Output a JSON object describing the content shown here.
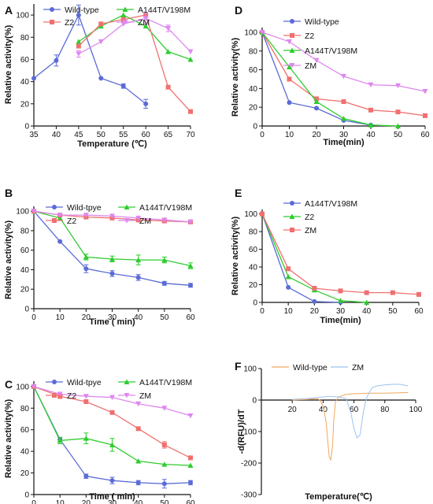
{
  "chart_data": [
    {
      "panel": "A",
      "type": "line",
      "xlabel": "Temperature (℃)",
      "ylabel": "Relative activity(%)",
      "xlim": [
        35,
        70
      ],
      "ylim": [
        0,
        110
      ],
      "xticks": [
        35,
        40,
        45,
        50,
        55,
        60,
        65,
        70
      ],
      "yticks": [
        0,
        20,
        40,
        60,
        80,
        100
      ],
      "legend_position": "top",
      "series": [
        {
          "name": "Wild-type",
          "color": "#5b6bd6",
          "marker": "circle",
          "x": [
            35,
            40,
            45,
            50,
            55,
            60
          ],
          "y": [
            43,
            59,
            100,
            43,
            36,
            20
          ],
          "err": [
            0,
            5,
            9,
            0,
            2,
            4
          ]
        },
        {
          "name": "A144T/V198M",
          "color": "#2ecc2e",
          "marker": "triangle",
          "x": [
            45,
            50,
            55,
            60,
            65,
            70
          ],
          "y": [
            76,
            90,
            100,
            90,
            67,
            60
          ],
          "err": [
            0,
            0,
            0,
            0,
            0,
            0
          ]
        },
        {
          "name": "Z2",
          "color": "#f07070",
          "marker": "square",
          "x": [
            45,
            50,
            55,
            60,
            65,
            70
          ],
          "y": [
            72,
            92,
            96,
            100,
            35,
            13
          ],
          "err": [
            0,
            0,
            0,
            0,
            0,
            0
          ]
        },
        {
          "name": "ZM",
          "color": "#dd88ee",
          "marker": "triangle-down",
          "x": [
            45,
            50,
            55,
            60,
            65,
            70
          ],
          "y": [
            65,
            76,
            92,
            97,
            88,
            67
          ],
          "err": [
            3,
            0,
            0,
            5,
            3,
            0
          ]
        }
      ]
    },
    {
      "panel": "B",
      "type": "line",
      "xlabel": "Time ( min)",
      "ylabel": "Relative activity(%)",
      "xlim": [
        0,
        60
      ],
      "ylim": [
        0,
        105
      ],
      "xticks": [
        0,
        10,
        20,
        30,
        40,
        50,
        60
      ],
      "yticks": [
        0,
        20,
        40,
        60,
        80,
        100
      ],
      "legend_position": "top",
      "series": [
        {
          "name": "Wild-tpye",
          "color": "#5b6bd6",
          "marker": "circle",
          "x": [
            0,
            10,
            20,
            30,
            40,
            50,
            60
          ],
          "y": [
            100,
            69,
            41,
            36,
            32,
            26,
            24
          ],
          "err": [
            0,
            0,
            4,
            3,
            3,
            2,
            2
          ]
        },
        {
          "name": "A144T/V198M",
          "color": "#2ecc2e",
          "marker": "triangle",
          "x": [
            0,
            10,
            20,
            30,
            40,
            50,
            60
          ],
          "y": [
            100,
            93,
            53,
            51,
            50,
            50,
            44
          ],
          "err": [
            0,
            0,
            3,
            3,
            5,
            3,
            3
          ]
        },
        {
          "name": "Z2",
          "color": "#f07070",
          "marker": "square",
          "x": [
            0,
            10,
            20,
            30,
            40,
            50,
            60
          ],
          "y": [
            100,
            96,
            94,
            93,
            91,
            90,
            89
          ],
          "err": [
            0,
            0,
            0,
            0,
            0,
            0,
            0
          ]
        },
        {
          "name": "ZM",
          "color": "#dd88ee",
          "marker": "triangle-down",
          "x": [
            0,
            10,
            20,
            30,
            40,
            50,
            60
          ],
          "y": [
            100,
            96,
            96,
            95,
            93,
            91,
            89
          ],
          "err": [
            0,
            0,
            0,
            0,
            0,
            0,
            0
          ]
        }
      ]
    },
    {
      "panel": "C",
      "type": "line",
      "xlabel": "Time ( min)",
      "ylabel": "Relative activity(%)",
      "xlim": [
        0,
        60
      ],
      "ylim": [
        0,
        105
      ],
      "xticks": [
        0,
        10,
        20,
        30,
        40,
        50,
        60
      ],
      "yticks": [
        0,
        20,
        40,
        60,
        80,
        100
      ],
      "legend_position": "top",
      "series": [
        {
          "name": "Wild-tpye",
          "color": "#5b6bd6",
          "marker": "circle",
          "x": [
            0,
            10,
            20,
            30,
            40,
            50,
            60
          ],
          "y": [
            100,
            51,
            17,
            13,
            11,
            10,
            11
          ],
          "err": [
            0,
            2,
            2,
            3,
            2,
            4,
            2
          ]
        },
        {
          "name": "A144T/V198M",
          "color": "#2ecc2e",
          "marker": "triangle",
          "x": [
            0,
            10,
            20,
            30,
            40,
            50,
            60
          ],
          "y": [
            100,
            50,
            52,
            46,
            31,
            28,
            27
          ],
          "err": [
            0,
            3,
            5,
            6,
            0,
            0,
            0
          ]
        },
        {
          "name": "Z2",
          "color": "#f07070",
          "marker": "square",
          "x": [
            0,
            10,
            20,
            30,
            40,
            50,
            60
          ],
          "y": [
            100,
            91,
            86,
            76,
            61,
            46,
            34
          ],
          "err": [
            0,
            2,
            0,
            0,
            0,
            3,
            0
          ]
        },
        {
          "name": "ZM",
          "color": "#dd88ee",
          "marker": "triangle-down",
          "x": [
            0,
            10,
            20,
            30,
            40,
            50,
            60
          ],
          "y": [
            100,
            93,
            91,
            90,
            84,
            80,
            73
          ],
          "err": [
            0,
            0,
            0,
            0,
            0,
            0,
            0
          ]
        }
      ]
    },
    {
      "panel": "D",
      "type": "line",
      "xlabel": "Time(min)",
      "ylabel": "Relative activity(%)",
      "xlim": [
        0,
        60
      ],
      "ylim": [
        0,
        105
      ],
      "xticks": [
        0,
        10,
        20,
        30,
        40,
        50,
        60
      ],
      "yticks": [
        0,
        20,
        40,
        60,
        80,
        100
      ],
      "legend_position": "top-right",
      "series": [
        {
          "name": "Wild-type",
          "color": "#5b6bd6",
          "marker": "circle",
          "x": [
            0,
            10,
            20,
            30,
            40
          ],
          "y": [
            100,
            25,
            19,
            6,
            1
          ],
          "err": [
            0,
            0,
            0,
            0,
            0
          ]
        },
        {
          "name": "Z2",
          "color": "#f07070",
          "marker": "square",
          "x": [
            0,
            10,
            20,
            30,
            40,
            50,
            60
          ],
          "y": [
            100,
            50,
            29,
            26,
            17,
            15,
            11
          ],
          "err": [
            0,
            0,
            0,
            0,
            0,
            0,
            0
          ]
        },
        {
          "name": "A144T/V198M",
          "color": "#2ecc2e",
          "marker": "triangle",
          "x": [
            0,
            10,
            20,
            30,
            40,
            50
          ],
          "y": [
            100,
            63,
            26,
            8,
            1,
            0
          ],
          "err": [
            0,
            2,
            0,
            0,
            0,
            0
          ]
        },
        {
          "name": "ZM",
          "color": "#dd88ee",
          "marker": "triangle-down",
          "x": [
            0,
            10,
            20,
            30,
            40,
            50,
            60
          ],
          "y": [
            100,
            90,
            70,
            53,
            44,
            43,
            37
          ],
          "err": [
            0,
            0,
            0,
            0,
            0,
            0,
            0
          ]
        }
      ]
    },
    {
      "panel": "E",
      "type": "line",
      "xlabel": "Time(min)",
      "ylabel": "Relative activity(%)",
      "xlim": [
        0,
        60
      ],
      "ylim": [
        0,
        105
      ],
      "xticks": [
        0,
        10,
        20,
        30,
        40,
        50,
        60
      ],
      "yticks": [
        0,
        20,
        40,
        60,
        80,
        100
      ],
      "legend_position": "top-right",
      "series": [
        {
          "name": "A144T/V198M",
          "color": "#5b6bd6",
          "marker": "circle",
          "x": [
            0,
            10,
            20,
            30
          ],
          "y": [
            100,
            17,
            1,
            0
          ],
          "err": [
            0,
            0,
            0,
            0
          ]
        },
        {
          "name": "Z2",
          "color": "#2ecc2e",
          "marker": "triangle",
          "x": [
            0,
            10,
            20,
            30,
            40
          ],
          "y": [
            100,
            29,
            14,
            2,
            0
          ],
          "err": [
            0,
            0,
            0,
            0,
            0
          ]
        },
        {
          "name": "ZM",
          "color": "#f07070",
          "marker": "square",
          "x": [
            0,
            10,
            20,
            30,
            40,
            50,
            60
          ],
          "y": [
            100,
            38,
            16,
            13,
            11,
            11,
            9
          ],
          "err": [
            0,
            0,
            0,
            0,
            0,
            0,
            0
          ]
        }
      ]
    },
    {
      "panel": "F",
      "type": "line",
      "xlabel": "Temperature(℃)",
      "ylabel": "-d(RFU)/dT",
      "xlim": [
        0,
        100
      ],
      "ylim": [
        -300,
        100
      ],
      "xticks": [
        20,
        40,
        60,
        80,
        100
      ],
      "yticks": [
        -300,
        -200,
        -100,
        0,
        100
      ],
      "legend_position": "top",
      "series": [
        {
          "name": "Wild-type",
          "color": "#f0a860",
          "marker": "none",
          "x": [
            20,
            30,
            36,
            38,
            40,
            42,
            43,
            44,
            45,
            46,
            47,
            48,
            50,
            55,
            60,
            70,
            80,
            90,
            95
          ],
          "y": [
            0,
            2,
            5,
            0,
            -20,
            -70,
            -130,
            -180,
            -190,
            -150,
            -60,
            -5,
            10,
            18,
            20,
            22,
            22,
            23,
            24
          ]
        },
        {
          "name": "ZM",
          "color": "#9cc4ee",
          "marker": "none",
          "x": [
            20,
            30,
            40,
            45,
            50,
            55,
            58,
            60,
            62,
            64,
            66,
            68,
            70,
            72,
            75,
            80,
            85,
            90,
            95
          ],
          "y": [
            2,
            5,
            10,
            12,
            10,
            5,
            -40,
            -90,
            -120,
            -110,
            -40,
            5,
            25,
            40,
            45,
            48,
            50,
            50,
            45
          ]
        }
      ]
    }
  ]
}
